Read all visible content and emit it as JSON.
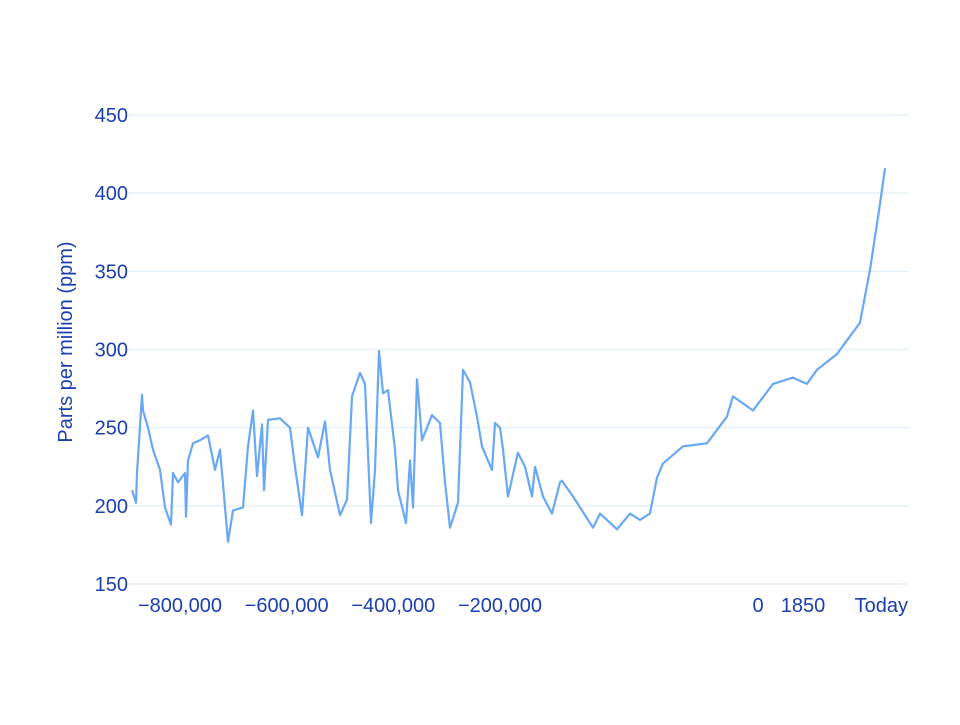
{
  "chart_data": {
    "type": "line",
    "title": "",
    "xlabel": "",
    "ylabel": "Parts per million (ppm)",
    "ylim": [
      150,
      450
    ],
    "yticks": [
      150,
      200,
      250,
      300,
      350,
      400,
      450
    ],
    "x_scale": "piecewise (non-linear)",
    "xticks": [
      {
        "value": -800000,
        "label": "−800,000"
      },
      {
        "value": -600000,
        "label": "−600,000"
      },
      {
        "value": -400000,
        "label": "−400,000"
      },
      {
        "value": -200000,
        "label": "−200,000"
      },
      {
        "value": 0,
        "label": "0"
      },
      {
        "value": 1850,
        "label": "1850"
      },
      {
        "value": 2020,
        "label": "Today"
      }
    ],
    "grid": "horizontal",
    "colors": {
      "line": "#69a8f4",
      "text": "#1b3fae",
      "grid": "#e6f1fb"
    },
    "series": [
      {
        "x": [
          -890000,
          -882500,
          -880600,
          -871300,
          -869400,
          -860000,
          -850600,
          -837500,
          -828100,
          -816900,
          -813100,
          -803800,
          -790600,
          -788800,
          -785000,
          -775600,
          -762500,
          -747500,
          -734400,
          -725000,
          -710000,
          -700600,
          -681900,
          -672500,
          -663100,
          -655600,
          -646300,
          -642500,
          -635000,
          -612500,
          -593800,
          -584400,
          -571300,
          -560000,
          -541300,
          -528100,
          -518800,
          -500000,
          -486900,
          -477500,
          -462500,
          -453100,
          -441900,
          -434400,
          -426900,
          -419400,
          -410000,
          -396900,
          -391300,
          -376300,
          -368800,
          -363100,
          -355600,
          -346300,
          -327500,
          -312500,
          -303100,
          -293800,
          -278800,
          -269400,
          -256300,
          -243100,
          -233800,
          -215000,
          -209400,
          -200000,
          -197700,
          -193800,
          -186100,
          -180600,
          -175200,
          -172900,
          -166700,
          -159700,
          -153500,
          -152000,
          -143400,
          -127900,
          -122500,
          -109300,
          -99200,
          -91500,
          -83800,
          -78300,
          -73700,
          -58200,
          -39600,
          -24100,
          -19400,
          -3900,
          615,
          1435,
          1858,
          1879,
          1920,
          1968,
          1989,
          2010,
          2020
        ],
        "y": [
          210,
          202,
          221,
          271,
          261,
          250,
          236,
          223,
          199,
          188,
          221,
          215,
          221,
          193,
          229,
          240,
          242,
          245,
          223,
          236,
          177,
          197,
          199,
          238,
          261,
          219,
          252,
          210,
          255,
          256,
          250,
          225,
          194,
          250,
          231,
          254,
          223,
          194,
          204,
          270,
          285,
          278,
          189,
          223,
          299,
          272,
          274,
          236,
          210,
          189,
          229,
          199,
          281,
          242,
          258,
          253,
          215,
          186,
          202,
          287,
          279,
          257,
          238,
          223,
          253,
          250,
          236,
          206,
          234,
          225,
          206,
          225,
          206,
          195,
          215,
          216,
          206,
          186,
          195,
          185,
          195,
          191,
          195,
          218,
          227,
          238,
          240,
          257,
          270,
          261,
          278,
          282,
          278,
          287,
          297,
          317,
          351,
          394,
          416
        ]
      }
    ]
  }
}
